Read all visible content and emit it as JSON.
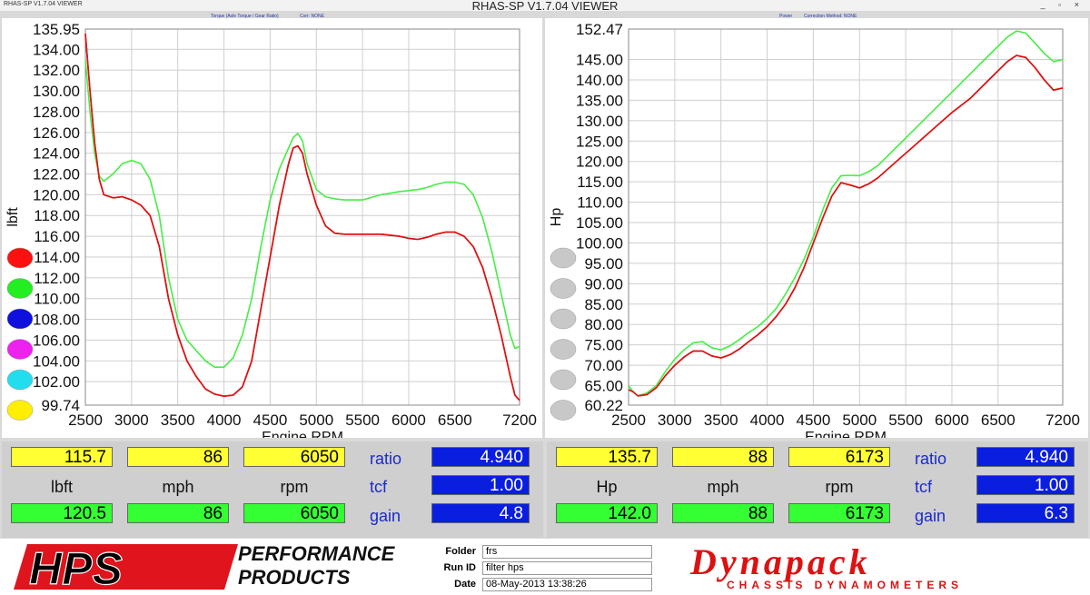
{
  "window": {
    "app_title": "RHAS-SP V1.7.04 VIEWER",
    "title": "RHAS-SP V1.7.04  VIEWER",
    "controls": "_ ▫ ×"
  },
  "left_panel": {
    "subtitle_a": "Torque (Axle Torque / Gear Ratio)",
    "subtitle_b": "Corr: NONE"
  },
  "right_panel": {
    "subtitle_a": "Power",
    "subtitle_b": "Correction Method: NONE"
  },
  "chart_data": [
    {
      "type": "line",
      "xlabel": "Engine RPM",
      "ylabel": "lbft",
      "xlim": [
        2500,
        7200
      ],
      "ylim": [
        99.74,
        135.95
      ],
      "x_ticks": [
        "2500",
        "3000",
        "3500",
        "4000",
        "4500",
        "5000",
        "5500",
        "6000",
        "6500",
        "7200"
      ],
      "y_ticks": [
        "135.95",
        "134.00",
        "132.00",
        "130.00",
        "128.00",
        "126.00",
        "124.00",
        "122.00",
        "120.00",
        "118.00",
        "116.00",
        "114.00",
        "112.00",
        "110.00",
        "108.00",
        "106.00",
        "104.00",
        "102.00",
        "99.74"
      ],
      "x_tick_values": [
        2500,
        3000,
        3500,
        4000,
        4500,
        5000,
        5500,
        6000,
        6500,
        7200
      ],
      "y_tick_values": [
        135.95,
        134,
        132,
        130,
        128,
        126,
        124,
        122,
        120,
        118,
        116,
        114,
        112,
        110,
        108,
        106,
        104,
        102,
        99.74
      ],
      "grid": true,
      "series": [
        {
          "color": "#e01010",
          "x": [
            2500,
            2550,
            2600,
            2650,
            2700,
            2800,
            2900,
            3000,
            3100,
            3200,
            3300,
            3400,
            3500,
            3600,
            3700,
            3800,
            3900,
            4000,
            4100,
            4200,
            4300,
            4400,
            4500,
            4600,
            4700,
            4750,
            4800,
            4850,
            4900,
            5000,
            5100,
            5200,
            5300,
            5500,
            5700,
            5900,
            6000,
            6100,
            6200,
            6300,
            6400,
            6500,
            6600,
            6700,
            6800,
            6900,
            7000,
            7100,
            7150,
            7200
          ],
          "y": [
            135.5,
            130,
            125,
            121.5,
            120,
            119.7,
            119.8,
            119.5,
            119,
            118,
            115,
            110,
            106.5,
            104,
            102.5,
            101.3,
            100.8,
            100.6,
            100.7,
            101.5,
            104,
            109,
            114,
            119,
            123,
            124.5,
            124.7,
            124,
            122,
            119,
            117,
            116.3,
            116.2,
            116.2,
            116.2,
            116,
            115.8,
            115.7,
            115.9,
            116.2,
            116.4,
            116.4,
            116,
            115,
            113,
            110,
            106.5,
            102.5,
            100.7,
            100.2
          ]
        },
        {
          "color": "#44ee44",
          "x": [
            2500,
            2550,
            2600,
            2650,
            2700,
            2800,
            2900,
            3000,
            3100,
            3200,
            3300,
            3400,
            3500,
            3600,
            3700,
            3800,
            3900,
            4000,
            4100,
            4200,
            4300,
            4400,
            4500,
            4600,
            4700,
            4750,
            4800,
            4850,
            4900,
            5000,
            5100,
            5200,
            5300,
            5500,
            5700,
            5900,
            6000,
            6100,
            6200,
            6300,
            6400,
            6500,
            6600,
            6700,
            6800,
            6900,
            7000,
            7100,
            7150,
            7200
          ],
          "y": [
            133,
            128,
            124,
            121.8,
            121.3,
            122,
            123,
            123.3,
            123,
            121.5,
            118,
            112,
            108,
            106,
            105,
            104,
            103.4,
            103.4,
            104.3,
            106.5,
            110,
            115,
            119.5,
            122.5,
            124.5,
            125.5,
            125.9,
            125.2,
            123,
            120.5,
            119.8,
            119.6,
            119.5,
            119.5,
            120,
            120.3,
            120.4,
            120.5,
            120.7,
            121,
            121.2,
            121.2,
            121,
            120,
            117.8,
            114.5,
            110.5,
            106.5,
            105.2,
            105.4
          ]
        }
      ]
    },
    {
      "type": "line",
      "xlabel": "Engine RPM",
      "ylabel": "Hp",
      "xlim": [
        2500,
        7200
      ],
      "ylim": [
        60.22,
        152.47
      ],
      "x_ticks": [
        "2500",
        "3000",
        "3500",
        "4000",
        "4500",
        "5000",
        "5500",
        "6000",
        "6500",
        "7200"
      ],
      "y_ticks": [
        "152.47",
        "145.00",
        "140.00",
        "135.00",
        "130.00",
        "125.00",
        "120.00",
        "115.00",
        "110.00",
        "105.00",
        "100.00",
        "95.00",
        "90.00",
        "85.00",
        "80.00",
        "75.00",
        "70.00",
        "65.00",
        "60.22"
      ],
      "x_tick_values": [
        2500,
        3000,
        3500,
        4000,
        4500,
        5000,
        5500,
        6000,
        6500,
        7200
      ],
      "y_tick_values": [
        152.47,
        145,
        140,
        135,
        130,
        125,
        120,
        115,
        110,
        105,
        100,
        95,
        90,
        85,
        80,
        75,
        70,
        65,
        60.22
      ],
      "grid": true,
      "series": [
        {
          "color": "#e01010",
          "x": [
            2500,
            2550,
            2600,
            2700,
            2800,
            2900,
            3000,
            3100,
            3200,
            3300,
            3400,
            3500,
            3600,
            3700,
            3800,
            3900,
            4000,
            4100,
            4200,
            4300,
            4400,
            4500,
            4600,
            4700,
            4800,
            4900,
            5000,
            5100,
            5200,
            5400,
            5600,
            5800,
            6000,
            6200,
            6400,
            6600,
            6700,
            6800,
            6900,
            7000,
            7100,
            7200
          ],
          "y": [
            64,
            63.5,
            62.5,
            62.8,
            64.5,
            67.5,
            70,
            72,
            73.5,
            73.5,
            72.3,
            71.8,
            72.6,
            74,
            75.8,
            77.5,
            79.5,
            82,
            85,
            89,
            94,
            100,
            106,
            111.5,
            114.8,
            114.2,
            113.5,
            114.5,
            116,
            120,
            124,
            128,
            132,
            135.5,
            140,
            144.5,
            146,
            145.5,
            143,
            140,
            137.5,
            138
          ]
        },
        {
          "color": "#44ee44",
          "x": [
            2500,
            2550,
            2600,
            2700,
            2800,
            2900,
            3000,
            3100,
            3200,
            3300,
            3400,
            3500,
            3600,
            3700,
            3800,
            3900,
            4000,
            4100,
            4200,
            4300,
            4400,
            4500,
            4600,
            4700,
            4800,
            4900,
            5000,
            5100,
            5200,
            5400,
            5600,
            5800,
            6000,
            6200,
            6400,
            6600,
            6700,
            6800,
            6900,
            7000,
            7100,
            7200
          ],
          "y": [
            65,
            63.5,
            62.5,
            63.2,
            65,
            68.5,
            71.5,
            73.8,
            75.5,
            75.8,
            74.3,
            73.8,
            74.8,
            76.3,
            78,
            79.5,
            81.5,
            84,
            87.5,
            91.5,
            96,
            101.5,
            108,
            113.5,
            116.5,
            116.6,
            116.5,
            117.5,
            119,
            123.5,
            128,
            132.5,
            137,
            141.5,
            146,
            150.5,
            152,
            151.5,
            149,
            146.5,
            144.5,
            145
          ]
        }
      ]
    }
  ],
  "left_swatches": [
    {
      "name": "swatch-red",
      "color": "#ff1010"
    },
    {
      "name": "swatch-green",
      "color": "#22ee22"
    },
    {
      "name": "swatch-blue",
      "color": "#1010dd"
    },
    {
      "name": "swatch-magenta",
      "color": "#ee22ee"
    },
    {
      "name": "swatch-cyan",
      "color": "#22ddee"
    },
    {
      "name": "swatch-yellow",
      "color": "#ffee00"
    }
  ],
  "right_swatches": [
    {
      "name": "swatch-gray",
      "color": "#c8c8c8"
    },
    {
      "name": "swatch-gray",
      "color": "#c8c8c8"
    },
    {
      "name": "swatch-gray",
      "color": "#c8c8c8"
    },
    {
      "name": "swatch-gray",
      "color": "#c8c8c8"
    },
    {
      "name": "swatch-gray",
      "color": "#c8c8c8"
    },
    {
      "name": "swatch-gray",
      "color": "#c8c8c8"
    }
  ],
  "left_readout": {
    "y1": "115.7",
    "y2": "86",
    "y3": "6050",
    "unit1": "lbft",
    "unit2": "mph",
    "unit3": "rpm",
    "g1": "120.5",
    "g2": "86",
    "g3": "6050",
    "ratio_label": "ratio",
    "tcf_label": "tcf",
    "gain_label": "gain",
    "ratio": "4.940",
    "tcf": "1.00",
    "gain": "4.8"
  },
  "right_readout": {
    "y1": "135.7",
    "y2": "88",
    "y3": "6173",
    "unit1": "Hp",
    "unit2": "mph",
    "unit3": "rpm",
    "g1": "142.0",
    "g2": "88",
    "g3": "6173",
    "ratio_label": "ratio",
    "tcf_label": "tcf",
    "gain_label": "gain",
    "ratio": "4.940",
    "tcf": "1.00",
    "gain": "6.3"
  },
  "footer": {
    "hps_logo": "HPS",
    "hps_tag1": "PERFORMANCE",
    "hps_tag2": "PRODUCTS",
    "folder_label": "Folder",
    "folder_value": "frs",
    "runid_label": "Run ID",
    "runid_value": "filter hps",
    "date_label": "Date",
    "date_value": "08-May-2013   13:38:26",
    "dynapack_logo": "Dynapack",
    "dynapack_tag": "CHASSIS DYNAMOMETERS"
  }
}
